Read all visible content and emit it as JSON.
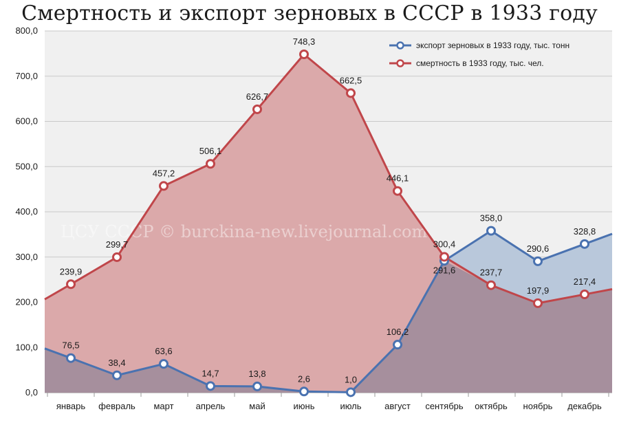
{
  "chart_data": {
    "type": "area",
    "title": "Смертность и экспорт зерновых в СССР в 1933 году",
    "categories": [
      "январь",
      "февраль",
      "март",
      "апрель",
      "май",
      "июнь",
      "июль",
      "август",
      "сентябрь",
      "октябрь",
      "ноябрь",
      "декабрь"
    ],
    "ylim": [
      0,
      800
    ],
    "yticks": [
      "0,0",
      "100,0",
      "200,0",
      "300,0",
      "400,0",
      "500,0",
      "600,0",
      "700,0",
      "800,0"
    ],
    "grid": true,
    "legend_position": "top-right",
    "series": [
      {
        "name": "экспорт зерновых в 1933 году, тыс. тонн",
        "values": [
          76.5,
          38.4,
          63.6,
          14.7,
          13.8,
          2.6,
          1.0,
          106.2,
          291.6,
          358.0,
          290.6,
          328.8
        ],
        "labels": [
          "76,5",
          "38,4",
          "63,6",
          "14,7",
          "13,8",
          "2,6",
          "1,0",
          "106,2",
          "291,6",
          "358,0",
          "290,6",
          "328,8"
        ],
        "color": "#4a72b0",
        "fill": "#b9c8db"
      },
      {
        "name": "смертность в 1933 году, тыс. чел.",
        "values": [
          239.9,
          299.7,
          457.2,
          506.1,
          626.7,
          748.3,
          662.5,
          446.1,
          300.4,
          237.7,
          197.9,
          217.4
        ],
        "labels": [
          "239,9",
          "299,7",
          "457,2",
          "506,1",
          "626,7",
          "748,3",
          "662,5",
          "446,1",
          "300,4",
          "237,7",
          "197,9",
          "217,4"
        ],
        "color": "#c0464a",
        "fill": "#dba9aa"
      }
    ],
    "watermark": "ЦСУ СССР © burckina-new.livejournal.com"
  }
}
